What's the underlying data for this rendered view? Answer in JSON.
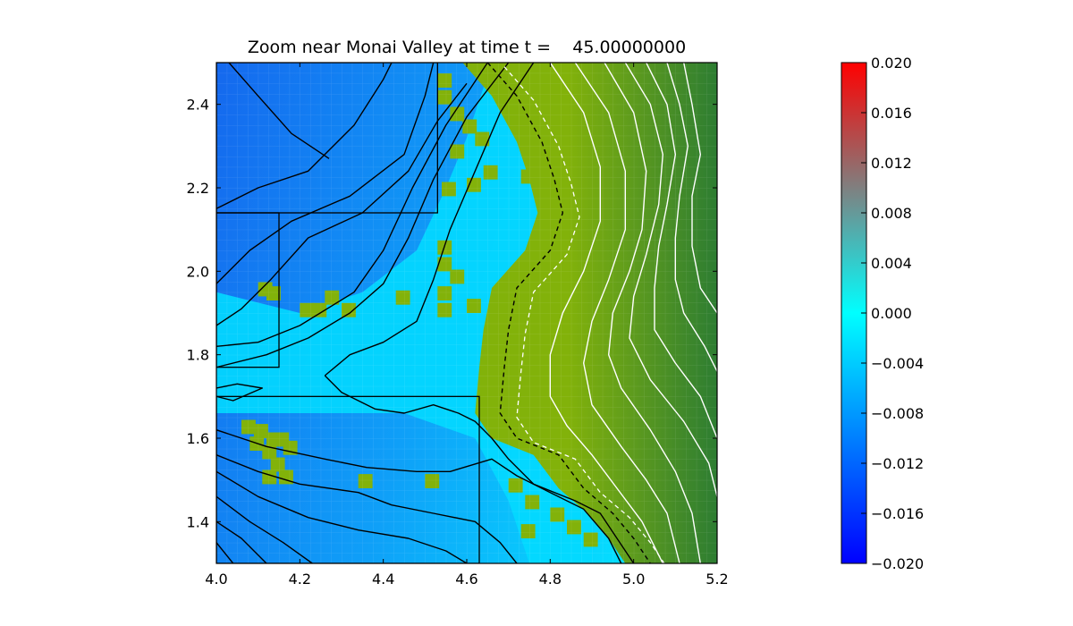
{
  "chart_data": {
    "type": "heatmap",
    "title": "Zoom near Monai Valley at time t =    45.00000000",
    "xlabel": "",
    "ylabel": "",
    "xlim": [
      4.0,
      5.2
    ],
    "ylim": [
      1.3,
      2.5
    ],
    "x_ticks": [
      "4.0",
      "4.2",
      "4.4",
      "4.6",
      "4.8",
      "5.0",
      "5.2"
    ],
    "y_ticks": [
      "1.4",
      "1.6",
      "1.8",
      "2.0",
      "2.2",
      "2.4"
    ],
    "grid": false,
    "legend": "none",
    "colorbar": {
      "min": -0.02,
      "max": 0.02,
      "ticks": [
        "0.020",
        "0.016",
        "0.012",
        "0.008",
        "0.004",
        "0.000",
        "−0.004",
        "−0.008",
        "−0.012",
        "−0.016",
        "−0.020"
      ],
      "colors": [
        "#0000ff",
        "#00ffff",
        "#ff0000"
      ]
    },
    "land_colors": [
      "#82b20a",
      "#2d7d32"
    ],
    "amr_patches": [
      {
        "x0": 4.0,
        "x1": 4.53,
        "y0": 2.14,
        "y1": 2.5
      },
      {
        "x0": 4.0,
        "x1": 4.15,
        "y0": 1.77,
        "y1": 2.14
      },
      {
        "x0": 4.0,
        "x1": 4.63,
        "y0": 1.3,
        "y1": 1.7
      }
    ],
    "contours": {
      "water": [
        [
          [
            4.03,
            2.5
          ],
          [
            4.1,
            2.42
          ],
          [
            4.18,
            2.33
          ],
          [
            4.27,
            2.27
          ]
        ],
        [
          [
            4.0,
            2.15
          ],
          [
            4.1,
            2.2
          ],
          [
            4.22,
            2.24
          ],
          [
            4.33,
            2.35
          ],
          [
            4.4,
            2.46
          ],
          [
            4.42,
            2.5
          ]
        ],
        [
          [
            4.0,
            1.97
          ],
          [
            4.08,
            2.05
          ],
          [
            4.18,
            2.12
          ],
          [
            4.32,
            2.18
          ],
          [
            4.45,
            2.28
          ],
          [
            4.5,
            2.42
          ],
          [
            4.52,
            2.5
          ]
        ],
        [
          [
            4.0,
            1.87
          ],
          [
            4.06,
            1.91
          ],
          [
            4.13,
            1.98
          ],
          [
            4.22,
            2.08
          ],
          [
            4.35,
            2.14
          ],
          [
            4.46,
            2.24
          ],
          [
            4.53,
            2.36
          ],
          [
            4.6,
            2.45
          ]
        ],
        [
          [
            4.0,
            1.82
          ],
          [
            4.1,
            1.83
          ],
          [
            4.2,
            1.87
          ],
          [
            4.33,
            1.95
          ],
          [
            4.4,
            2.05
          ],
          [
            4.47,
            2.2
          ],
          [
            4.55,
            2.35
          ],
          [
            4.65,
            2.5
          ]
        ],
        [
          [
            4.0,
            1.77
          ],
          [
            4.12,
            1.8
          ],
          [
            4.22,
            1.84
          ],
          [
            4.32,
            1.9
          ],
          [
            4.4,
            1.97
          ],
          [
            4.46,
            2.08
          ],
          [
            4.52,
            2.22
          ],
          [
            4.6,
            2.37
          ],
          [
            4.7,
            2.5
          ]
        ],
        [
          [
            4.26,
            1.75
          ],
          [
            4.32,
            1.8
          ],
          [
            4.4,
            1.83
          ],
          [
            4.48,
            1.88
          ],
          [
            4.52,
            1.98
          ],
          [
            4.56,
            2.1
          ],
          [
            4.62,
            2.24
          ],
          [
            4.68,
            2.38
          ],
          [
            4.76,
            2.5
          ]
        ],
        [
          [
            4.0,
            1.72
          ],
          [
            4.05,
            1.73
          ],
          [
            4.11,
            1.72
          ],
          [
            4.04,
            1.69
          ],
          [
            4.0,
            1.7
          ]
        ],
        [
          [
            4.26,
            1.75
          ],
          [
            4.3,
            1.71
          ],
          [
            4.38,
            1.67
          ],
          [
            4.45,
            1.66
          ],
          [
            4.52,
            1.68
          ],
          [
            4.58,
            1.66
          ],
          [
            4.62,
            1.64
          ],
          [
            4.66,
            1.6
          ],
          [
            4.7,
            1.55
          ],
          [
            4.76,
            1.49
          ],
          [
            4.86,
            1.45
          ],
          [
            4.92,
            1.42
          ],
          [
            4.96,
            1.36
          ],
          [
            5.0,
            1.3
          ]
        ],
        [
          [
            4.0,
            1.62
          ],
          [
            4.12,
            1.58
          ],
          [
            4.26,
            1.55
          ],
          [
            4.36,
            1.53
          ],
          [
            4.48,
            1.52
          ],
          [
            4.56,
            1.52
          ],
          [
            4.66,
            1.55
          ],
          [
            4.72,
            1.51
          ],
          [
            4.8,
            1.47
          ],
          [
            4.88,
            1.43
          ],
          [
            4.94,
            1.36
          ],
          [
            4.97,
            1.3
          ]
        ],
        [
          [
            4.0,
            1.56
          ],
          [
            4.1,
            1.52
          ],
          [
            4.2,
            1.49
          ],
          [
            4.34,
            1.47
          ],
          [
            4.42,
            1.44
          ],
          [
            4.52,
            1.42
          ],
          [
            4.62,
            1.4
          ],
          [
            4.68,
            1.35
          ],
          [
            4.72,
            1.3
          ]
        ],
        [
          [
            4.0,
            1.52
          ],
          [
            4.1,
            1.46
          ],
          [
            4.22,
            1.41
          ],
          [
            4.34,
            1.38
          ],
          [
            4.46,
            1.36
          ],
          [
            4.55,
            1.33
          ],
          [
            4.6,
            1.3
          ]
        ],
        [
          [
            4.0,
            1.46
          ],
          [
            4.08,
            1.4
          ],
          [
            4.16,
            1.35
          ],
          [
            4.23,
            1.3
          ]
        ],
        [
          [
            4.0,
            1.4
          ],
          [
            4.06,
            1.36
          ],
          [
            4.12,
            1.3
          ]
        ],
        [
          [
            4.0,
            1.35
          ],
          [
            4.04,
            1.3
          ]
        ]
      ],
      "shore": [
        [
          4.65,
          2.5
        ],
        [
          4.72,
          2.42
        ],
        [
          4.78,
          2.31
        ],
        [
          4.81,
          2.22
        ],
        [
          4.83,
          2.14
        ],
        [
          4.8,
          2.05
        ],
        [
          4.72,
          1.96
        ],
        [
          4.7,
          1.86
        ],
        [
          4.69,
          1.77
        ],
        [
          4.68,
          1.66
        ],
        [
          4.72,
          1.6
        ],
        [
          4.82,
          1.56
        ],
        [
          4.88,
          1.48
        ],
        [
          4.95,
          1.42
        ],
        [
          5.0,
          1.36
        ],
        [
          5.04,
          1.3
        ]
      ],
      "land": [
        [
          [
            4.8,
            2.5
          ],
          [
            4.88,
            2.38
          ],
          [
            4.92,
            2.25
          ],
          [
            4.92,
            2.12
          ],
          [
            4.88,
            2.0
          ],
          [
            4.83,
            1.9
          ],
          [
            4.8,
            1.8
          ],
          [
            4.8,
            1.7
          ],
          [
            4.84,
            1.63
          ],
          [
            4.9,
            1.56
          ],
          [
            4.96,
            1.48
          ],
          [
            5.02,
            1.4
          ],
          [
            5.07,
            1.3
          ]
        ],
        [
          [
            4.86,
            2.5
          ],
          [
            4.94,
            2.38
          ],
          [
            4.98,
            2.24
          ],
          [
            4.98,
            2.1
          ],
          [
            4.94,
            1.98
          ],
          [
            4.9,
            1.88
          ],
          [
            4.88,
            1.78
          ],
          [
            4.9,
            1.68
          ],
          [
            4.97,
            1.58
          ],
          [
            5.03,
            1.5
          ],
          [
            5.08,
            1.42
          ],
          [
            5.11,
            1.3
          ]
        ],
        [
          [
            4.93,
            2.5
          ],
          [
            5.0,
            2.38
          ],
          [
            5.03,
            2.24
          ],
          [
            5.02,
            2.1
          ],
          [
            4.99,
            2.0
          ],
          [
            4.95,
            1.9
          ],
          [
            4.94,
            1.8
          ],
          [
            4.97,
            1.72
          ],
          [
            5.04,
            1.62
          ],
          [
            5.1,
            1.52
          ],
          [
            5.14,
            1.42
          ],
          [
            5.16,
            1.3
          ]
        ],
        [
          [
            4.98,
            2.5
          ],
          [
            5.04,
            2.4
          ],
          [
            5.07,
            2.28
          ],
          [
            5.06,
            2.16
          ],
          [
            5.03,
            2.04
          ],
          [
            5.0,
            1.94
          ],
          [
            4.99,
            1.84
          ],
          [
            5.04,
            1.74
          ],
          [
            5.12,
            1.64
          ],
          [
            5.18,
            1.54
          ],
          [
            5.2,
            1.46
          ]
        ],
        [
          [
            5.03,
            2.5
          ],
          [
            5.08,
            2.4
          ],
          [
            5.1,
            2.28
          ],
          [
            5.08,
            2.16
          ],
          [
            5.06,
            2.06
          ],
          [
            5.05,
            1.96
          ],
          [
            5.05,
            1.86
          ],
          [
            5.1,
            1.78
          ],
          [
            5.16,
            1.7
          ],
          [
            5.2,
            1.6
          ]
        ],
        [
          [
            5.08,
            2.5
          ],
          [
            5.11,
            2.4
          ],
          [
            5.13,
            2.3
          ],
          [
            5.11,
            2.18
          ],
          [
            5.1,
            2.08
          ],
          [
            5.1,
            1.98
          ],
          [
            5.12,
            1.9
          ],
          [
            5.17,
            1.82
          ],
          [
            5.2,
            1.76
          ]
        ],
        [
          [
            5.12,
            2.5
          ],
          [
            5.14,
            2.4
          ],
          [
            5.16,
            2.28
          ],
          [
            5.14,
            2.18
          ],
          [
            5.14,
            2.06
          ],
          [
            5.16,
            1.96
          ],
          [
            5.2,
            1.9
          ]
        ]
      ]
    }
  }
}
